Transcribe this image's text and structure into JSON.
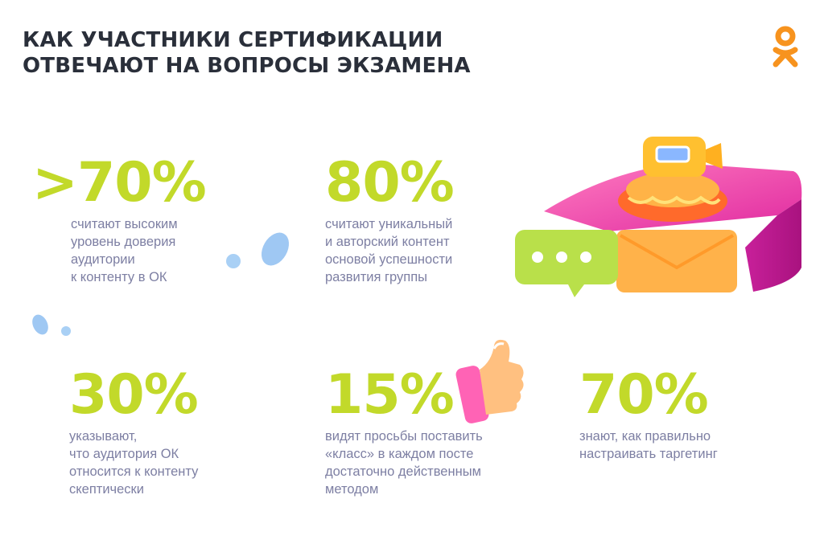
{
  "title": [
    "КАК УЧАСТНИКИ СЕРТИФИКАЦИИ",
    "ОТВЕЧАЮТ НА ВОПРОСЫ ЭКЗАМЕНА"
  ],
  "colors": {
    "accent": "#c2d92a",
    "text": "#7d7fa3",
    "title": "#2a2f3a",
    "logo": "#f7931e"
  },
  "stats": [
    {
      "value": ">70%",
      "lines": [
        "считают высоким",
        "уровень доверия",
        "аудитории",
        "к контенту в ОК"
      ]
    },
    {
      "value": "80%",
      "lines": [
        "считают уникальный",
        "и авторский контент",
        "основой успешности",
        "развития группы"
      ]
    },
    {
      "value": "30%",
      "lines": [
        "указывают,",
        "что аудитория ОК",
        "относится к контенту",
        "скептически"
      ]
    },
    {
      "value": "15%",
      "lines": [
        "видят просьбы поставить",
        "«класс» в каждом посте",
        "достаточно действенным",
        "методом"
      ]
    },
    {
      "value": "70%",
      "lines": [
        "знают, как правильно",
        "настраивать таргетинг"
      ]
    }
  ]
}
